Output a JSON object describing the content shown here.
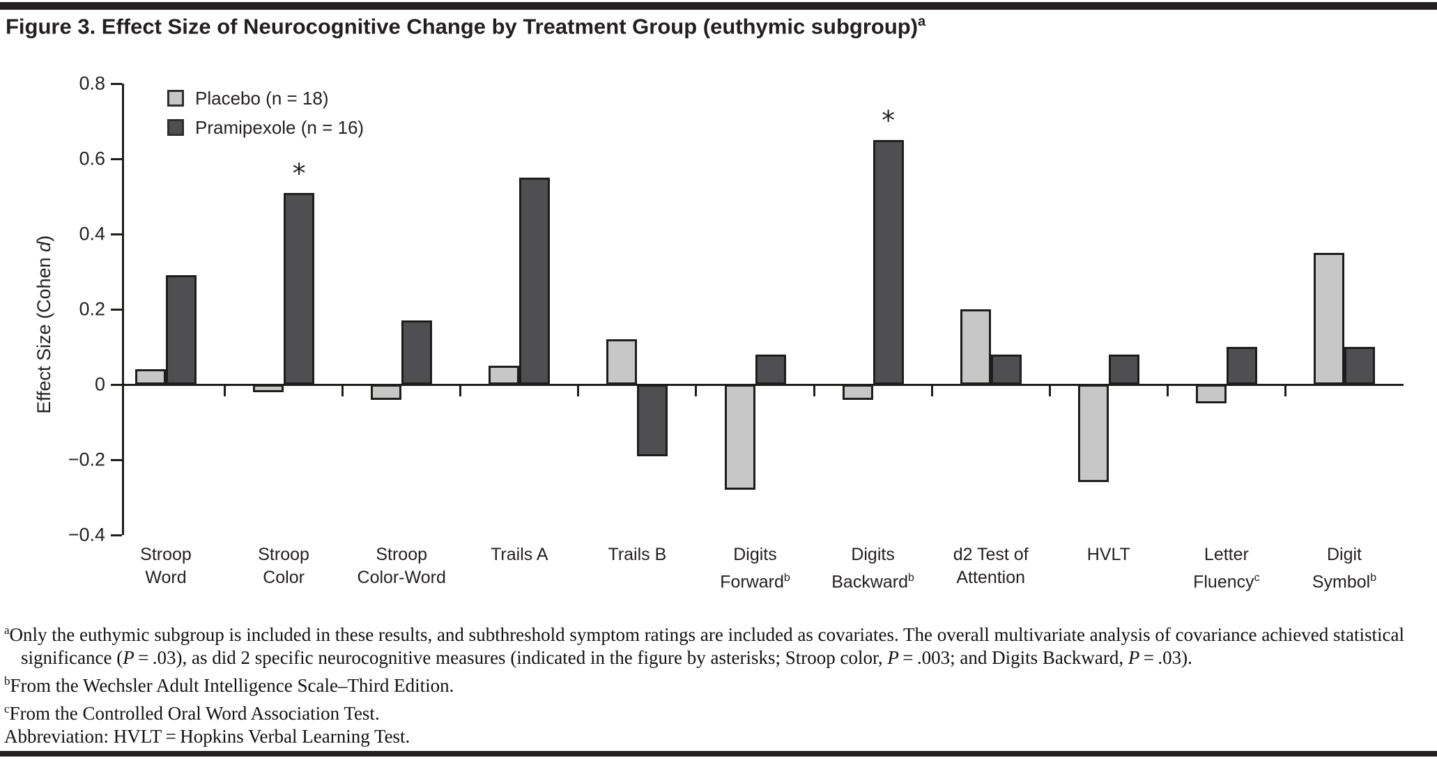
{
  "page": {
    "title_main": "Figure 3. Effect Size of Neurocognitive Change by Treatment Group (euthymic subgroup)",
    "title_sup": "a"
  },
  "colors": {
    "placebo_fill": "#c7c7c7",
    "pramipexole_fill": "#4f4f51",
    "stroke": "#1d1d1b",
    "rule": "#231f20"
  },
  "chart_data": {
    "type": "bar",
    "title": "Figure 3. Effect Size of Neurocognitive Change by Treatment Group (euthymic subgroup)",
    "ylabel_segments": [
      {
        "text": "Effect Size (Cohen "
      },
      {
        "i": "d"
      },
      {
        "text": ")"
      }
    ],
    "ylim": [
      -0.4,
      0.8
    ],
    "grid": false,
    "legend_position": "top-left-inside",
    "yticks": [
      {
        "value": 0.8,
        "label": "0.8"
      },
      {
        "value": 0.6,
        "label": "0.6"
      },
      {
        "value": 0.4,
        "label": "0.4"
      },
      {
        "value": 0.2,
        "label": "0.2"
      },
      {
        "value": 0.0,
        "label": "0"
      },
      {
        "value": -0.2,
        "label": "−0.2"
      },
      {
        "value": -0.4,
        "label": "−0.4"
      }
    ],
    "categories": [
      {
        "lines": [
          "Stroop",
          "Word"
        ],
        "sup": ""
      },
      {
        "lines": [
          "Stroop",
          "Color"
        ],
        "sup": ""
      },
      {
        "lines": [
          "Stroop",
          "Color-Word"
        ],
        "sup": ""
      },
      {
        "lines": [
          "Trails A"
        ],
        "sup": ""
      },
      {
        "lines": [
          "Trails B"
        ],
        "sup": ""
      },
      {
        "lines": [
          "Digits",
          "Forward"
        ],
        "sup": "b"
      },
      {
        "lines": [
          "Digits",
          "Backward"
        ],
        "sup": "b"
      },
      {
        "lines": [
          "d2 Test of",
          "Attention"
        ],
        "sup": ""
      },
      {
        "lines": [
          "HVLT"
        ],
        "sup": ""
      },
      {
        "lines": [
          "Letter",
          "Fluency"
        ],
        "sup": "c"
      },
      {
        "lines": [
          "Digit",
          "Symbol"
        ],
        "sup": "b"
      }
    ],
    "series": [
      {
        "name": "Placebo (n = 18)",
        "color": "#c7c7c7",
        "values": [
          0.04,
          -0.02,
          -0.04,
          0.05,
          0.12,
          -0.28,
          -0.04,
          0.2,
          -0.26,
          -0.05,
          0.35
        ],
        "asterisk_at": []
      },
      {
        "name": "Pramipexole (n = 16)",
        "color": "#4f4f51",
        "values": [
          0.29,
          0.51,
          0.17,
          0.55,
          -0.19,
          0.08,
          0.65,
          0.08,
          0.08,
          0.1,
          0.1
        ],
        "asterisk_at": [
          1,
          6
        ]
      }
    ],
    "annotations": [
      {
        "symbol": "*",
        "series": "Pramipexole (n = 16)",
        "category": "Stroop Color"
      },
      {
        "symbol": "*",
        "series": "Pramipexole (n = 16)",
        "category": "Digits Backward"
      }
    ]
  },
  "footnotes": [
    {
      "segments": [
        {
          "sup": "a"
        },
        {
          "text": "Only the euthymic subgroup is included in these results, and subthreshold symptom ratings are included as covariates. The overall multivariate analysis of covariance achieved statistical significance ("
        },
        {
          "i": "P"
        },
        {
          "text": " = .03), as did 2 specific neurocognitive measures (indicated in the figure by asterisks; Stroop color, "
        },
        {
          "i": "P"
        },
        {
          "text": " = .003; and Digits Backward, "
        },
        {
          "i": "P"
        },
        {
          "text": " = .03)."
        }
      ]
    },
    {
      "segments": [
        {
          "sup": "b"
        },
        {
          "text": "From the Wechsler Adult Intelligence Scale–Third Edition."
        }
      ]
    },
    {
      "segments": [
        {
          "sup": "c"
        },
        {
          "text": "From the Controlled Oral Word Association Test."
        }
      ]
    },
    {
      "segments": [
        {
          "text": "Abbreviation: HVLT = Hopkins Verbal Learning Test."
        }
      ]
    }
  ]
}
